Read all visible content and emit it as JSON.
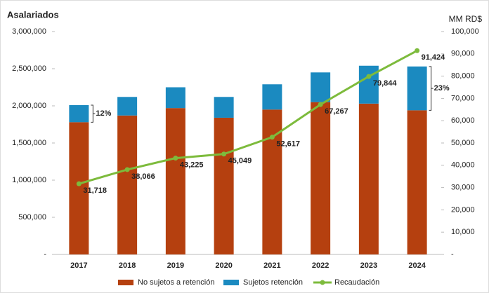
{
  "chart_data": {
    "type": "bar",
    "stacked": true,
    "y_label": "Asalariados",
    "y2_label": "MM RD$",
    "categories": [
      "2017",
      "2018",
      "2019",
      "2020",
      "2021",
      "2022",
      "2023",
      "2024"
    ],
    "series": [
      {
        "name": "No sujetos a retención",
        "type": "bar",
        "color": "#b5400f",
        "values": [
          1780000,
          1870000,
          1970000,
          1840000,
          1950000,
          2050000,
          2030000,
          1940000
        ]
      },
      {
        "name": "Sujetos retención",
        "type": "bar",
        "color": "#1b8ac0",
        "values": [
          230000,
          250000,
          280000,
          280000,
          340000,
          400000,
          510000,
          590000
        ]
      },
      {
        "name": "Recaudación",
        "type": "line",
        "axis": "y2",
        "color": "#7dbb3c",
        "values": [
          31718,
          38066,
          43225,
          45049,
          52617,
          67267,
          79844,
          91424
        ],
        "value_labels": [
          "31,718",
          "38,066",
          "43,225",
          "45,049",
          "52,617",
          "67,267",
          "79,844",
          "91,424"
        ]
      }
    ],
    "annotations": [
      "12%",
      "23%"
    ],
    "ylim": [
      0,
      3000000
    ],
    "yticks": [
      {
        "value": 0,
        "label": "-"
      },
      {
        "value": 500000,
        "label": "500,000"
      },
      {
        "value": 1000000,
        "label": "1,000,000"
      },
      {
        "value": 1500000,
        "label": "1,500,000"
      },
      {
        "value": 2000000,
        "label": "2,000,000"
      },
      {
        "value": 2500000,
        "label": "2,500,000"
      },
      {
        "value": 3000000,
        "label": "3,000,000"
      }
    ],
    "y2lim": [
      0,
      100000
    ],
    "y2ticks": [
      {
        "value": 0,
        "label": "-"
      },
      {
        "value": 10000,
        "label": "10,000"
      },
      {
        "value": 20000,
        "label": "20,000"
      },
      {
        "value": 30000,
        "label": "30,000"
      },
      {
        "value": 40000,
        "label": "40,000"
      },
      {
        "value": 50000,
        "label": "50,000"
      },
      {
        "value": 60000,
        "label": "60,000"
      },
      {
        "value": 70000,
        "label": "70,000"
      },
      {
        "value": 80000,
        "label": "80,000"
      },
      {
        "value": 90000,
        "label": "90,000"
      },
      {
        "value": 100000,
        "label": "100,000"
      }
    ],
    "grid": false,
    "legend": "bottom"
  }
}
